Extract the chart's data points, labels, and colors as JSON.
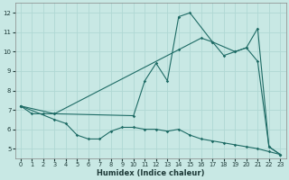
{
  "xlabel": "Humidex (Indice chaleur)",
  "bg_color": "#c8e8e4",
  "line_color": "#1e6b65",
  "grid_color": "#b0d8d4",
  "xlim": [
    -0.5,
    23.5
  ],
  "ylim": [
    4.5,
    12.5
  ],
  "xticks": [
    0,
    1,
    2,
    3,
    4,
    5,
    6,
    7,
    8,
    9,
    10,
    11,
    12,
    13,
    14,
    15,
    16,
    17,
    18,
    19,
    20,
    21,
    22,
    23
  ],
  "yticks": [
    5,
    6,
    7,
    8,
    9,
    10,
    11,
    12
  ],
  "series1_x": [
    0,
    1,
    2,
    3,
    10,
    11,
    12,
    13,
    14,
    15,
    17,
    18,
    19,
    20,
    21,
    22,
    23
  ],
  "series1_y": [
    7.2,
    6.8,
    6.8,
    6.8,
    6.7,
    8.5,
    9.4,
    8.5,
    11.8,
    12.0,
    10.5,
    9.8,
    10.0,
    10.2,
    9.5,
    5.1,
    4.7
  ],
  "series2_x": [
    0,
    3,
    14,
    16,
    17,
    19,
    20,
    21,
    22,
    23
  ],
  "series2_y": [
    7.2,
    6.8,
    10.1,
    10.7,
    10.5,
    10.0,
    10.2,
    11.2,
    5.1,
    4.7
  ],
  "series3_x": [
    0,
    3,
    4,
    5,
    6,
    7,
    8,
    9,
    10,
    11,
    12,
    13,
    14,
    15,
    16,
    17,
    18,
    19,
    20,
    21,
    22,
    23
  ],
  "series3_y": [
    7.2,
    6.5,
    6.3,
    5.7,
    5.5,
    5.5,
    5.9,
    6.1,
    6.1,
    6.0,
    6.0,
    5.9,
    6.0,
    5.7,
    5.5,
    5.4,
    5.3,
    5.2,
    5.1,
    5.0,
    4.85,
    4.7
  ]
}
